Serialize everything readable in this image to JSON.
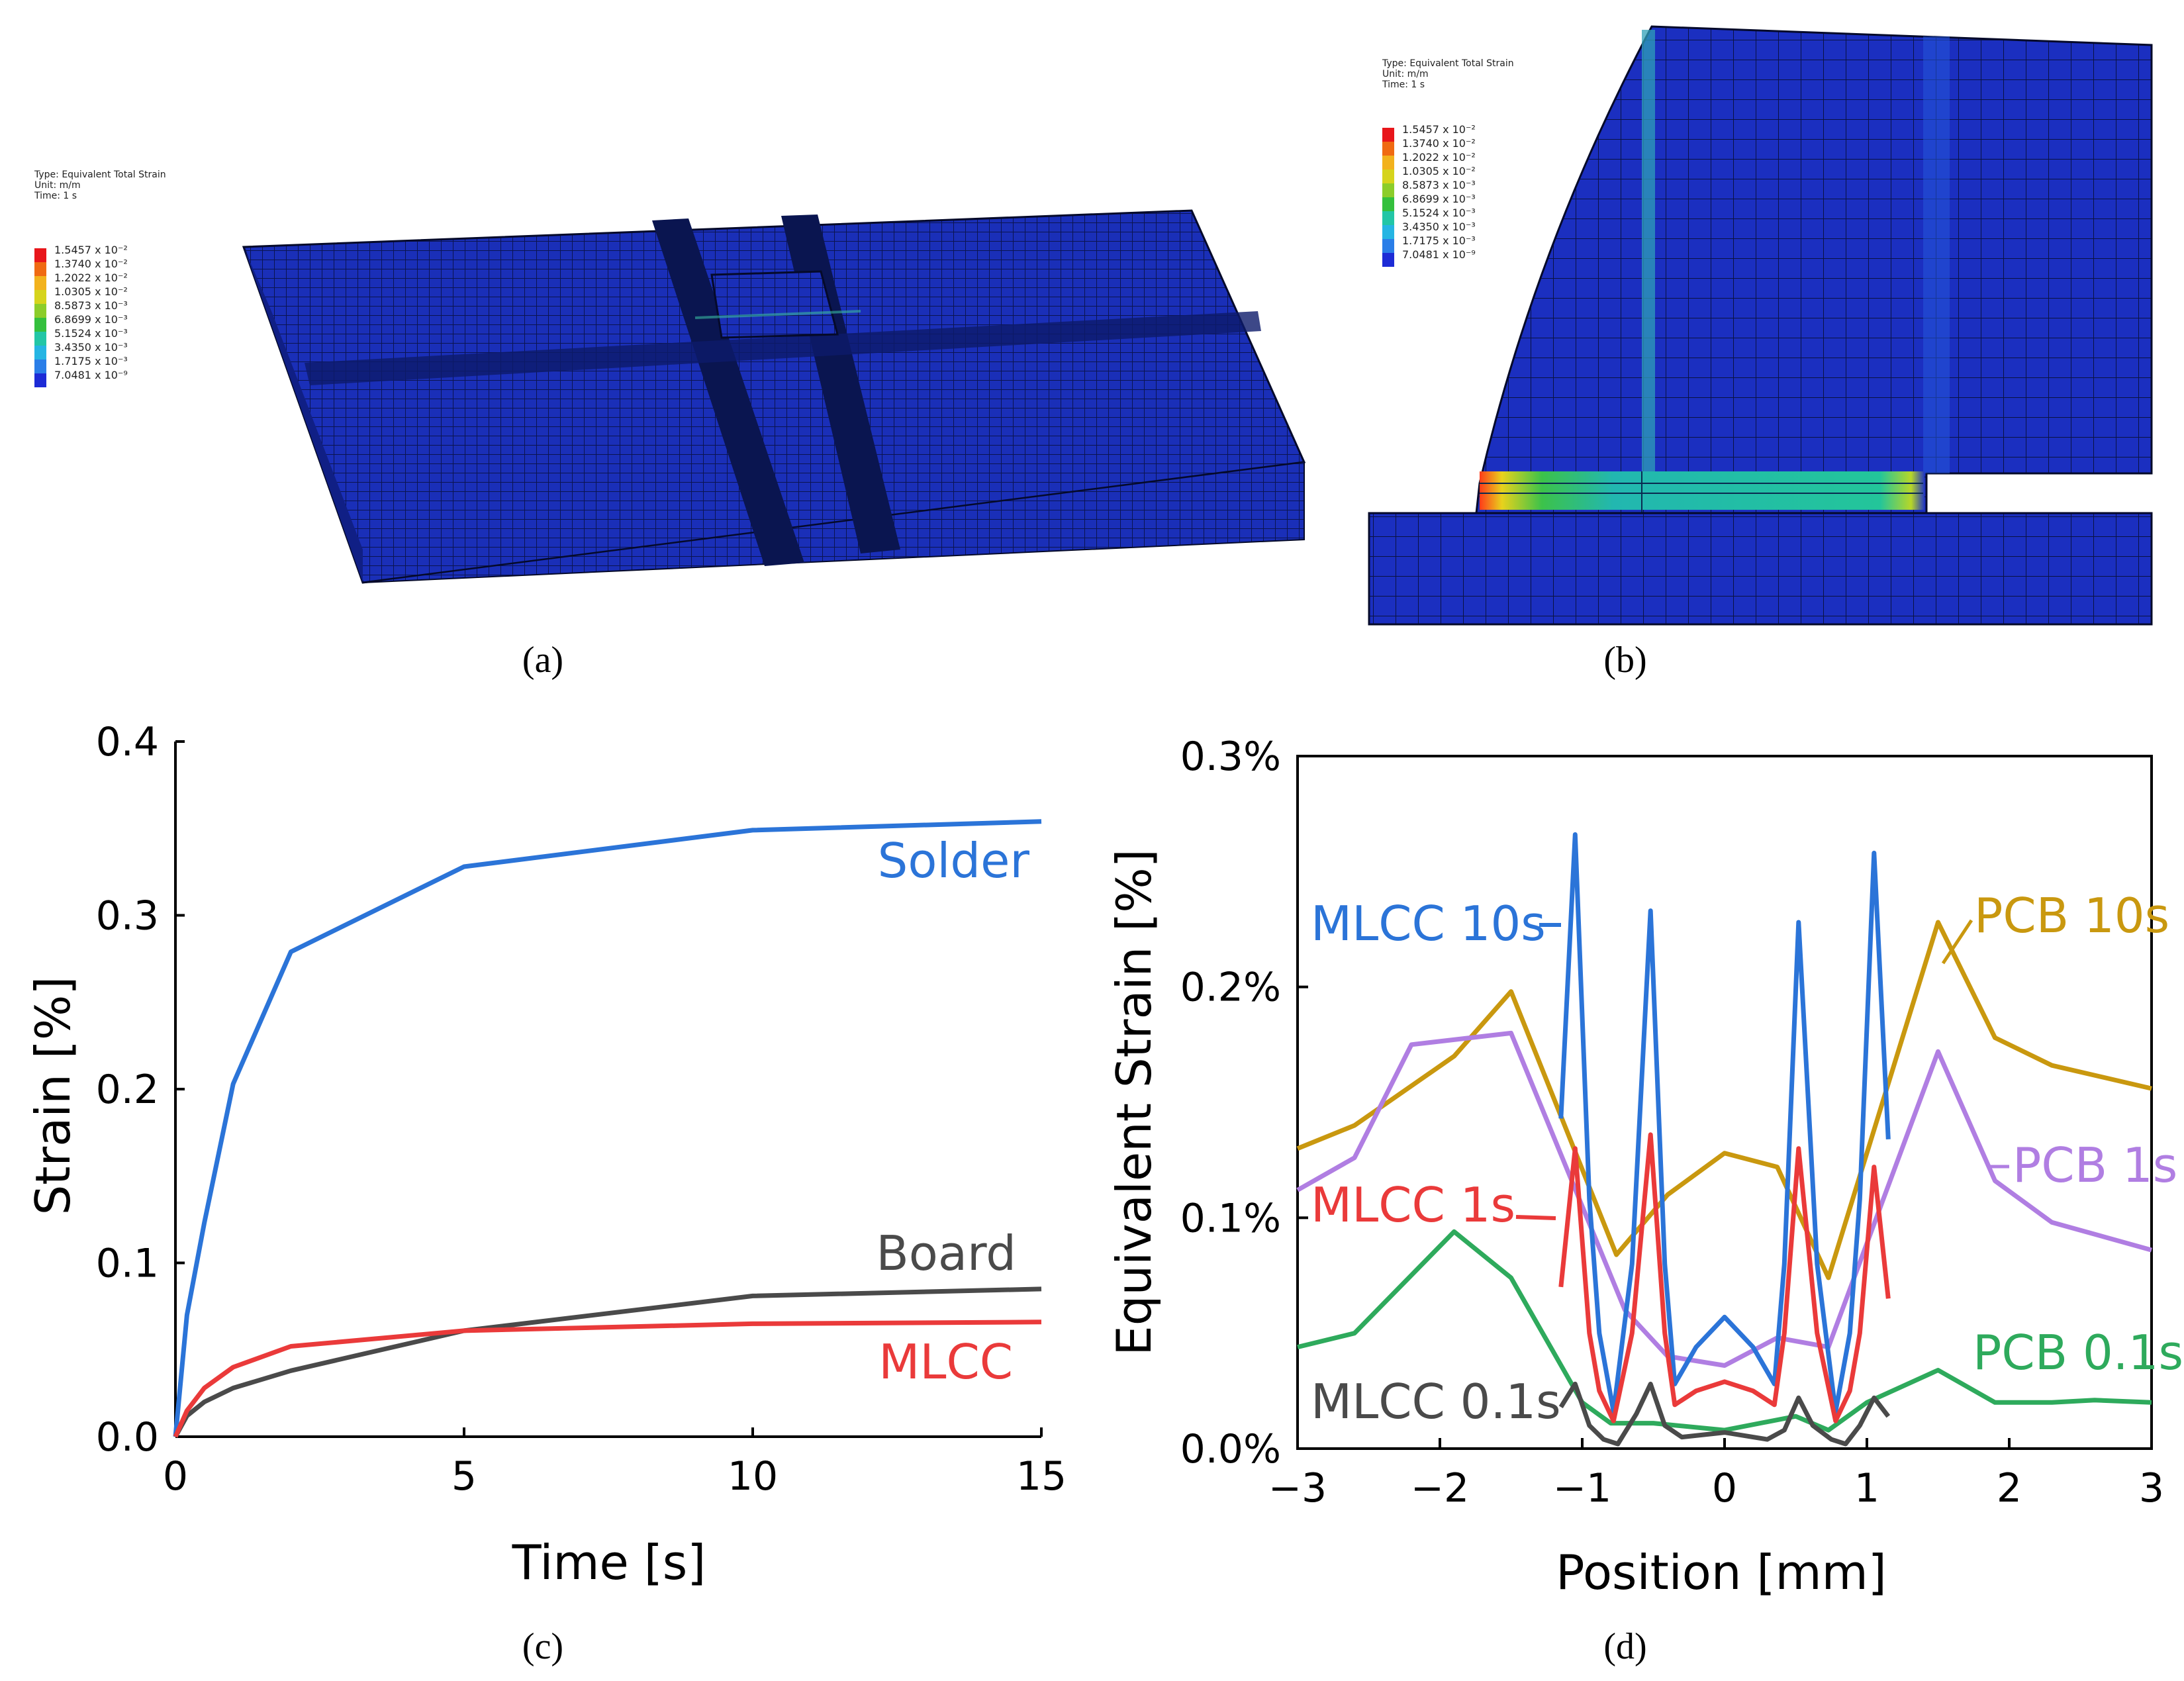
{
  "panels": {
    "a": {
      "label": "(a)",
      "legend": {
        "lines": [
          "Type: Equivalent Total Strain",
          "Unit: m/m",
          "Time: 1 s"
        ],
        "values": [
          "1.5457 x 10⁻²",
          "1.3740 x 10⁻²",
          "1.2022 x 10⁻²",
          "1.0305 x 10⁻²",
          "8.5873 x 10⁻³",
          "6.8699 x 10⁻³",
          "5.1524 x 10⁻³",
          "3.4350 x 10⁻³",
          "1.7175 x 10⁻³",
          "7.0481 x 10⁻⁹"
        ],
        "colors": [
          "#e8161b",
          "#f06a12",
          "#f2b21d",
          "#d6d41c",
          "#8ccd2a",
          "#34c03d",
          "#22c6a6",
          "#25b5e3",
          "#2a7ee8",
          "#1d2bd6"
        ]
      }
    },
    "b": {
      "label": "(b)",
      "legend": {
        "lines": [
          "Type: Equivalent Total Strain",
          "Unit: m/m",
          "Time: 1 s"
        ],
        "values": [
          "1.5457 x 10⁻²",
          "1.3740 x 10⁻²",
          "1.2022 x 10⁻²",
          "1.0305 x 10⁻²",
          "8.5873 x 10⁻³",
          "6.8699 x 10⁻³",
          "5.1524 x 10⁻³",
          "3.4350 x 10⁻³",
          "1.7175 x 10⁻³",
          "7.0481 x 10⁻⁹"
        ],
        "colors": [
          "#e8161b",
          "#f06a12",
          "#f2b21d",
          "#d6d41c",
          "#8ccd2a",
          "#34c03d",
          "#22c6a6",
          "#25b5e3",
          "#2a7ee8",
          "#1d2bd6"
        ]
      }
    },
    "c": {
      "label": "(c)"
    },
    "d": {
      "label": "(d)"
    }
  },
  "chart_data": [
    {
      "id": "c",
      "type": "line",
      "xlabel": "Time [s]",
      "ylabel": "Strain [%]",
      "xlim": [
        0,
        15
      ],
      "ylim": [
        0,
        0.4
      ],
      "xticks": [
        0,
        5,
        10,
        15
      ],
      "xtick_labels": [
        "0",
        "5",
        "10",
        "15"
      ],
      "yticks": [
        0,
        0.1,
        0.2,
        0.3,
        0.4
      ],
      "ytick_labels": [
        "0.0",
        "0.1",
        "0.2",
        "0.3",
        "0.4"
      ],
      "series": [
        {
          "name": "Solder",
          "color": "#2b74d8",
          "x": [
            0,
            0.2,
            0.5,
            1,
            2,
            5,
            10,
            15
          ],
          "y": [
            0,
            0.07,
            0.123,
            0.203,
            0.279,
            0.328,
            0.349,
            0.354
          ]
        },
        {
          "name": "Board",
          "color": "#4a4a4a",
          "x": [
            0,
            0.2,
            0.5,
            1,
            2,
            5,
            10,
            15
          ],
          "y": [
            0,
            0.012,
            0.02,
            0.028,
            0.038,
            0.061,
            0.081,
            0.085
          ]
        },
        {
          "name": "MLCC",
          "color": "#ea3a3a",
          "x": [
            0,
            0.2,
            0.5,
            1,
            2,
            5,
            10,
            15
          ],
          "y": [
            0,
            0.015,
            0.028,
            0.04,
            0.052,
            0.061,
            0.065,
            0.066
          ]
        }
      ]
    },
    {
      "id": "d",
      "type": "line",
      "xlabel": "Position [mm]",
      "ylabel": "Equivalent Strain [%]",
      "xlim": [
        -3,
        3
      ],
      "ylim": [
        0,
        0.3
      ],
      "xticks": [
        -3,
        -2,
        -1,
        0,
        1,
        2,
        3
      ],
      "xtick_labels": [
        "−3",
        "−2",
        "−1",
        "0",
        "1",
        "2",
        "3"
      ],
      "yticks": [
        0,
        0.1,
        0.2,
        0.3
      ],
      "ytick_labels": [
        "0.0%",
        "0.1%",
        "0.2%",
        "0.3%"
      ],
      "series": [
        {
          "name": "PCB 10s",
          "color": "#c9980f",
          "x": [
            -3,
            -2.6,
            -1.9,
            -1.5,
            -0.76,
            -0.4,
            0,
            0.37,
            0.73,
            1.5,
            1.9,
            2.3,
            3
          ],
          "y": [
            0.13,
            0.14,
            0.17,
            0.198,
            0.084,
            0.11,
            0.128,
            0.122,
            0.074,
            0.228,
            0.178,
            0.166,
            0.156
          ]
        },
        {
          "name": "PCB 1s",
          "color": "#b07ee2",
          "x": [
            -3,
            -2.6,
            -2.2,
            -1.5,
            -0.7,
            -0.4,
            0,
            0.37,
            0.73,
            1.5,
            1.9,
            2.3,
            3
          ],
          "y": [
            0.112,
            0.126,
            0.175,
            0.18,
            0.06,
            0.04,
            0.036,
            0.048,
            0.044,
            0.172,
            0.116,
            0.098,
            0.086
          ]
        },
        {
          "name": "PCB 0.1s",
          "color": "#2eaa5c",
          "x": [
            -3,
            -2.6,
            -1.9,
            -1.5,
            -1.0,
            -0.8,
            -0.5,
            0,
            0.5,
            0.73,
            1.0,
            1.5,
            1.9,
            2.3,
            2.6,
            3
          ],
          "y": [
            0.044,
            0.05,
            0.094,
            0.074,
            0.02,
            0.011,
            0.011,
            0.008,
            0.014,
            0.008,
            0.02,
            0.034,
            0.02,
            0.02,
            0.021,
            0.02
          ]
        },
        {
          "name": "MLCC 10s",
          "color": "#2b74d8",
          "x": [
            -1.15,
            -1.05,
            -0.95,
            -0.88,
            -0.78,
            -0.65,
            -0.52,
            -0.42,
            -0.35,
            -0.2,
            0,
            0.2,
            0.35,
            0.42,
            0.52,
            0.65,
            0.78,
            0.88,
            0.95,
            1.05,
            1.15
          ],
          "y": [
            0.143,
            0.266,
            0.108,
            0.05,
            0.016,
            0.08,
            0.233,
            0.08,
            0.028,
            0.044,
            0.057,
            0.044,
            0.028,
            0.08,
            0.228,
            0.08,
            0.016,
            0.05,
            0.108,
            0.258,
            0.134
          ]
        },
        {
          "name": "MLCC 1s",
          "color": "#ea3a3a",
          "x": [
            -1.15,
            -1.05,
            -0.95,
            -0.88,
            -0.78,
            -0.65,
            -0.52,
            -0.42,
            -0.35,
            -0.2,
            0,
            0.2,
            0.35,
            0.42,
            0.52,
            0.65,
            0.78,
            0.88,
            0.95,
            1.05,
            1.15
          ],
          "y": [
            0.07,
            0.13,
            0.05,
            0.025,
            0.012,
            0.05,
            0.136,
            0.05,
            0.019,
            0.025,
            0.029,
            0.025,
            0.019,
            0.05,
            0.13,
            0.05,
            0.012,
            0.025,
            0.05,
            0.122,
            0.065
          ]
        },
        {
          "name": "MLCC 0.1s",
          "color": "#4a4a4a",
          "x": [
            -1.15,
            -1.05,
            -0.95,
            -0.85,
            -0.75,
            -0.62,
            -0.52,
            -0.42,
            -0.3,
            0,
            0.3,
            0.42,
            0.52,
            0.62,
            0.75,
            0.85,
            0.95,
            1.05,
            1.15
          ],
          "y": [
            0.018,
            0.028,
            0.01,
            0.004,
            0.002,
            0.015,
            0.028,
            0.01,
            0.005,
            0.007,
            0.004,
            0.008,
            0.022,
            0.01,
            0.004,
            0.002,
            0.01,
            0.022,
            0.014
          ]
        }
      ]
    }
  ]
}
